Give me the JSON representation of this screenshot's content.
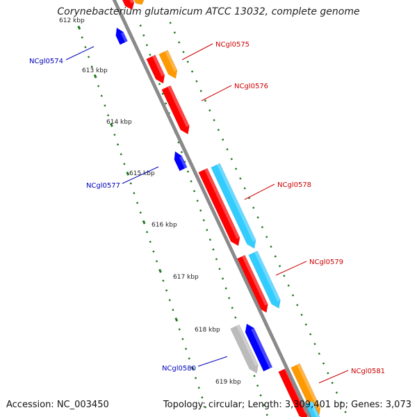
{
  "title": "Corynebacterium glutamicum ATCC 13032, complete genome",
  "accession": "Accession: NC_003450",
  "summary": "Topology: circular; Length: 3,309,401 bp; Genes: 3,073",
  "kbp_ticks": [
    "612 kbp",
    "613 kbp",
    "614 kbp",
    "615 kbp",
    "616 kbp",
    "617 kbp",
    "618 kbp",
    "619 kbp"
  ],
  "gene_labels": {
    "reverse": [
      "NCgl0574",
      "NCgl0577",
      "NCgl0580"
    ],
    "forward": [
      "NCgl0575",
      "NCgl0576",
      "NCgl0578",
      "NCgl0579",
      "NCgl0581"
    ]
  },
  "colors": {
    "backbone": "#8a8a8a",
    "forward_gene": "#ff0000",
    "reverse_gene": "#0000ff",
    "forward_frame": "#ff9900",
    "forward_frame_alt": "#33ccff",
    "reverse_frame": "#bbbbbb",
    "tick_marks": "#1f7a1f",
    "forward_label": "#cc0000",
    "reverse_label": "#0000bb"
  }
}
